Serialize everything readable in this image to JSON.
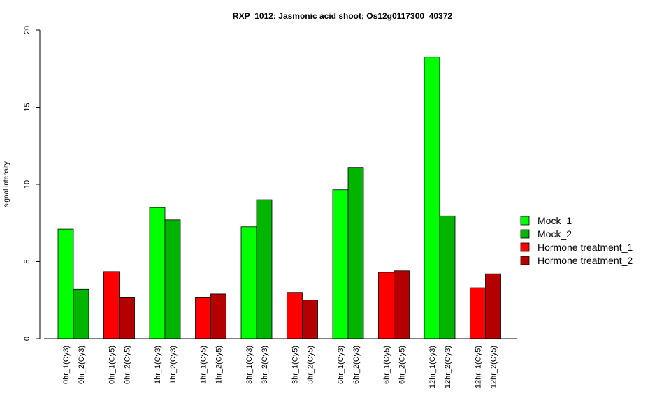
{
  "chart_data": {
    "type": "bar",
    "title": "RXP_1012: Jasmonic acid shoot; Os12g0117300_40372",
    "ylabel": "signal intensity",
    "xlabel": "",
    "ylim": [
      0,
      20
    ],
    "yticks": [
      "0",
      "5",
      "10",
      "15",
      "20"
    ],
    "grid": false,
    "legend_position": "right",
    "bars": [
      {
        "label": "0hr_1(Cy3)",
        "value": 7.1,
        "series": "Mock_1"
      },
      {
        "label": "0hr_2(Cy3)",
        "value": 3.2,
        "series": "Mock_2"
      },
      {
        "label": "0hr_1(Cy5)",
        "value": 4.35,
        "series": "Hormone treatment_1"
      },
      {
        "label": "0hr_2(Cy5)",
        "value": 2.65,
        "series": "Hormone treatment_2"
      },
      {
        "label": "1hr_1(Cy3)",
        "value": 8.5,
        "series": "Mock_1"
      },
      {
        "label": "1hr_2(Cy3)",
        "value": 7.7,
        "series": "Mock_2"
      },
      {
        "label": "1hr_1(Cy5)",
        "value": 2.65,
        "series": "Hormone treatment_1"
      },
      {
        "label": "1hr_2(Cy5)",
        "value": 2.9,
        "series": "Hormone treatment_2"
      },
      {
        "label": "3hr_1(Cy3)",
        "value": 7.25,
        "series": "Mock_1"
      },
      {
        "label": "3hr_2(Cy3)",
        "value": 9.0,
        "series": "Mock_2"
      },
      {
        "label": "3hr_1(Cy5)",
        "value": 3.0,
        "series": "Hormone treatment_1"
      },
      {
        "label": "3hr_2(Cy5)",
        "value": 2.5,
        "series": "Hormone treatment_2"
      },
      {
        "label": "6hr_1(Cy3)",
        "value": 9.65,
        "series": "Mock_1"
      },
      {
        "label": "6hr_2(Cy3)",
        "value": 11.1,
        "series": "Mock_2"
      },
      {
        "label": "6hr_1(Cy5)",
        "value": 4.3,
        "series": "Hormone treatment_1"
      },
      {
        "label": "6hr_2(Cy5)",
        "value": 4.4,
        "series": "Hormone treatment_2"
      },
      {
        "label": "12hr_1(Cy3)",
        "value": 18.25,
        "series": "Mock_1"
      },
      {
        "label": "12hr_2(Cy3)",
        "value": 7.95,
        "series": "Mock_2"
      },
      {
        "label": "12hr_1(Cy5)",
        "value": 3.3,
        "series": "Hormone treatment_1"
      },
      {
        "label": "12hr_2(Cy5)",
        "value": 4.2,
        "series": "Hormone treatment_2"
      }
    ],
    "legend": [
      {
        "name": "Mock_1",
        "color": "#00ff00"
      },
      {
        "name": "Mock_2",
        "color": "#00b400"
      },
      {
        "name": "Hormone treatment_1",
        "color": "#ff0000"
      },
      {
        "name": "Hormone treatment_2",
        "color": "#b40000"
      }
    ]
  }
}
